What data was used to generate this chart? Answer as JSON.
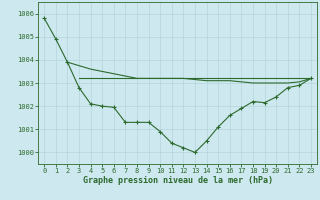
{
  "line1_x": [
    0,
    1,
    2,
    3,
    4,
    5,
    6,
    7,
    8,
    9,
    10,
    11,
    12,
    13,
    14,
    15,
    16,
    17,
    18,
    19,
    20,
    21,
    22,
    23
  ],
  "line1_y": [
    1005.8,
    1004.9,
    1003.9,
    1002.8,
    1002.1,
    1002.0,
    1001.95,
    1001.3,
    1001.3,
    1001.3,
    1000.9,
    1000.4,
    1000.2,
    1000.0,
    1000.5,
    1001.1,
    1001.6,
    1001.9,
    1002.2,
    1002.15,
    1002.4,
    1002.8,
    1002.9,
    1003.2
  ],
  "line2_x": [
    2,
    3,
    4,
    5,
    6,
    7,
    8,
    9,
    10,
    11,
    12,
    13,
    14,
    15,
    16,
    17,
    18,
    19,
    20,
    21,
    22,
    23
  ],
  "line2_y": [
    1003.9,
    1003.75,
    1003.6,
    1003.5,
    1003.4,
    1003.3,
    1003.2,
    1003.2,
    1003.2,
    1003.2,
    1003.2,
    1003.15,
    1003.1,
    1003.1,
    1003.1,
    1003.05,
    1003.0,
    1003.0,
    1003.0,
    1003.0,
    1003.05,
    1003.2
  ],
  "line3_x": [
    3,
    23
  ],
  "line3_y": [
    1003.2,
    1003.2
  ],
  "line_color": "#2d6a2d",
  "bg_color": "#cde8ef",
  "grid_color": "#b8d8e0",
  "xlabel": "Graphe pression niveau de la mer (hPa)",
  "ylim": [
    999.5,
    1006.5
  ],
  "xlim": [
    -0.5,
    23.5
  ],
  "yticks": [
    1000,
    1001,
    1002,
    1003,
    1004,
    1005,
    1006
  ],
  "xticks": [
    0,
    1,
    2,
    3,
    4,
    5,
    6,
    7,
    8,
    9,
    10,
    11,
    12,
    13,
    14,
    15,
    16,
    17,
    18,
    19,
    20,
    21,
    22,
    23
  ],
  "tick_fontsize": 5.0,
  "label_fontsize": 6.0
}
